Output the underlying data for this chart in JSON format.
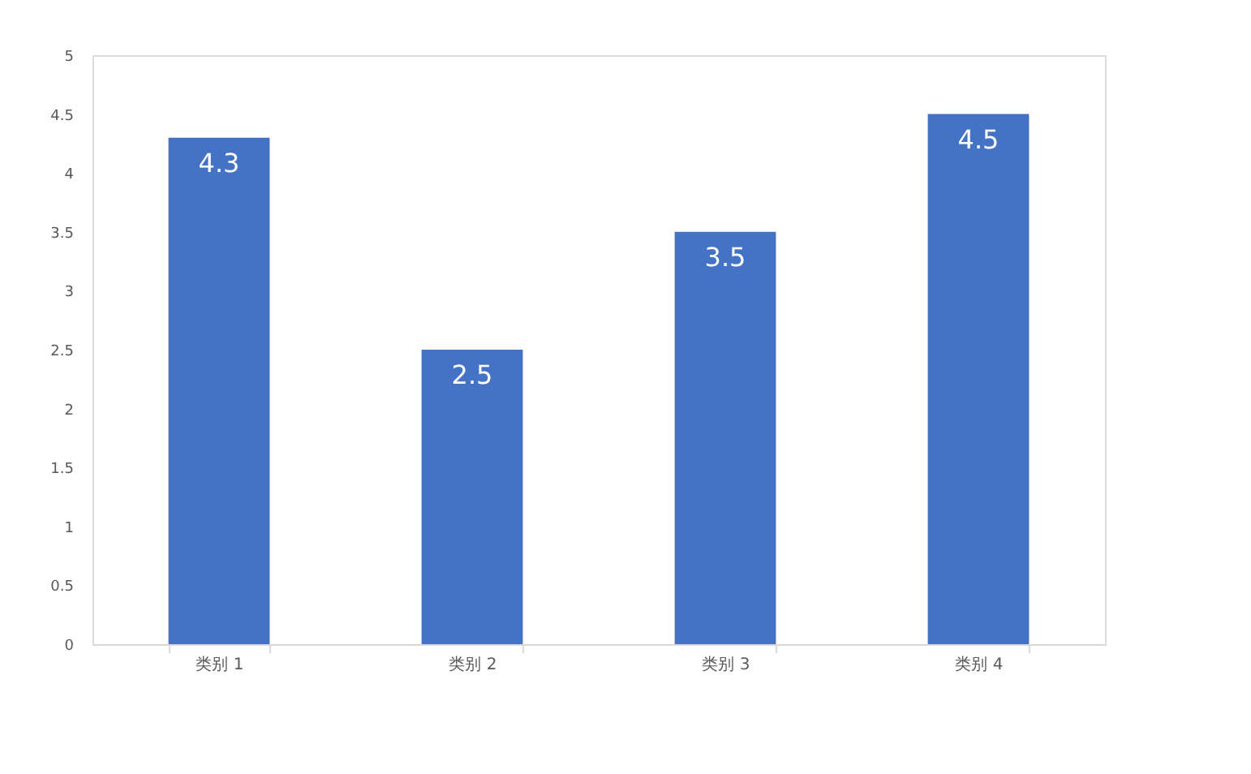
{
  "chart_data": {
    "type": "bar",
    "categories": [
      "类别 1",
      "类别 2",
      "类别 3",
      "类别 4"
    ],
    "values": [
      4.3,
      2.5,
      3.5,
      4.5
    ],
    "color": "#4472c4",
    "ylim": [
      0,
      5
    ],
    "yticks": [
      0,
      0.5,
      1,
      1.5,
      2,
      2.5,
      3,
      3.5,
      4,
      4.5,
      5
    ],
    "data_labels": true,
    "grid": false
  }
}
